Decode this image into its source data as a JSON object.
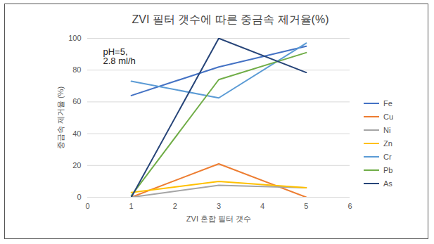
{
  "chart_data": {
    "type": "line",
    "title": "ZVI 필터 갯수에 따른 중금속 제거율(%)",
    "annotation": "pH=5,\n2.8 ml/h",
    "x_label": "ZVI 혼합 필터 갯수",
    "y_label": "중금속 제거율 (%)",
    "x": [
      1,
      3,
      5
    ],
    "series": [
      {
        "name": "Fe",
        "color": "#4472c4",
        "values": [
          64,
          82,
          95
        ]
      },
      {
        "name": "Cu",
        "color": "#ed7d31",
        "values": [
          0,
          21,
          0
        ]
      },
      {
        "name": "Ni",
        "color": "#a5a5a5",
        "values": [
          0,
          7.5,
          6
        ]
      },
      {
        "name": "Zn",
        "color": "#ffc000",
        "values": [
          3,
          10,
          6
        ]
      },
      {
        "name": "Cr",
        "color": "#5b9bd5",
        "values": [
          73,
          62.5,
          97
        ]
      },
      {
        "name": "Pb",
        "color": "#70ad47",
        "values": [
          1,
          74,
          91
        ]
      },
      {
        "name": "As",
        "color": "#264478",
        "values": [
          0,
          100,
          78.5
        ]
      }
    ],
    "xlim": [
      0,
      6
    ],
    "xticks": [
      0,
      1,
      2,
      3,
      4,
      5,
      6
    ],
    "ylim": [
      0,
      100
    ],
    "yticks": [
      0,
      20,
      40,
      60,
      80,
      100
    ],
    "grid": true,
    "legend": "right"
  }
}
